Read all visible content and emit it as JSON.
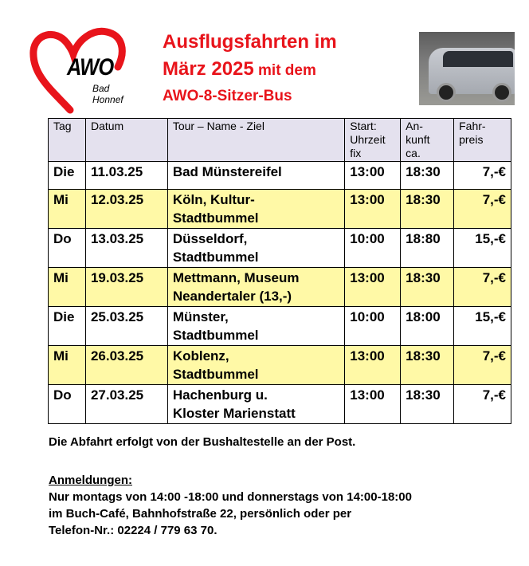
{
  "header": {
    "logo_text": "AWO",
    "logo_subtext": "Bad Honnef",
    "title_line1": "Ausflugsfahrten im",
    "title_line2_big": "März 2025",
    "title_line2_small": " mit dem",
    "title_line3": "AWO-8-Sitzer-Bus",
    "accent_color": "#e8141b"
  },
  "table": {
    "columns": [
      "Tag",
      "Datum",
      "Tour – Name - Ziel",
      "Start: Uhrzeit fix",
      "An-kunft ca.",
      "Fahr-preis"
    ],
    "column_lines": [
      [
        "Tag"
      ],
      [
        "Datum"
      ],
      [
        "Tour – Name - Ziel"
      ],
      [
        "Start:",
        "Uhrzeit",
        "fix"
      ],
      [
        "An-",
        "kunft",
        "ca."
      ],
      [
        "Fahr-",
        "preis"
      ]
    ],
    "rows": [
      {
        "tag": "Die",
        "datum": "11.03.25",
        "tour": "Bad Münstereifel",
        "tour2": "",
        "start": "13:00",
        "ankunft": "18:30",
        "preis": "7,-€"
      },
      {
        "tag": "Mi",
        "datum": "12.03.25",
        "tour": "Köln, Kultur-",
        "tour2": "Stadtbummel",
        "start": "13:00",
        "ankunft": "18:30",
        "preis": "7,-€"
      },
      {
        "tag": "Do",
        "datum": "13.03.25",
        "tour": "Düsseldorf,",
        "tour2": "Stadtbummel",
        "start": "10:00",
        "ankunft": "18:80",
        "preis": "15,-€"
      },
      {
        "tag": "Mi",
        "datum": "19.03.25",
        "tour": "Mettmann, Museum",
        "tour2": "Neandertaler (13,-)",
        "start": "13:00",
        "ankunft": "18:30",
        "preis": "7,-€"
      },
      {
        "tag": "Die",
        "datum": "25.03.25",
        "tour": "Münster,",
        "tour2": "Stadtbummel",
        "start": "10:00",
        "ankunft": "18:00",
        "preis": "15,-€"
      },
      {
        "tag": "Mi",
        "datum": "26.03.25",
        "tour": "Koblenz,",
        "tour2": "Stadtbummel",
        "start": "13:00",
        "ankunft": "18:30",
        "preis": "7,-€"
      },
      {
        "tag": "Do",
        "datum": "27.03.25",
        "tour": "Hachenburg u.",
        "tour2": "Kloster Marienstatt",
        "start": "13:00",
        "ankunft": "18:30",
        "preis": "7,-€"
      }
    ]
  },
  "footer": {
    "departure": "Die Abfahrt erfolgt von der Bushaltestelle an der Post.",
    "registration_heading": "Anmeldungen:",
    "line1": "Nur montags von 14:00 -18:00 und donnerstags von 14:00-18:00",
    "line2": "im Buch-Café, Bahnhofstraße 22, persönlich oder per",
    "line3": "Telefon-Nr.: 02224 / 779 63 70."
  }
}
